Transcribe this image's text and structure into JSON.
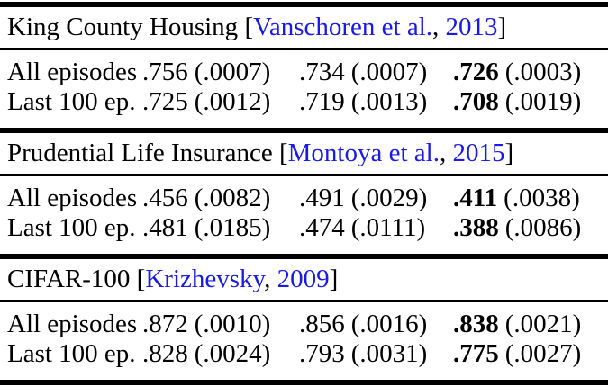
{
  "punct": {
    "open_bracket": " [",
    "comma_sep": ", ",
    "close_bracket": "]"
  },
  "colors": {
    "citation_link": "#1a1ae6",
    "text": "#000000",
    "rule": "#000000",
    "background": "#ffffff"
  },
  "table": {
    "sections": [
      {
        "name": "King County Housing",
        "citation": {
          "authors": "Vanschoren et al.",
          "year": "2013"
        },
        "rows": [
          {
            "label": "All episodes",
            "cells": [
              {
                "value": ".756",
                "std": "(.0007)"
              },
              {
                "value": ".734",
                "std": "(.0007)"
              },
              {
                "value": ".726",
                "std": "(.0003)",
                "bold": true
              }
            ]
          },
          {
            "label": "Last 100 ep.",
            "cells": [
              {
                "value": ".725",
                "std": "(.0012)"
              },
              {
                "value": ".719",
                "std": "(.0013)"
              },
              {
                "value": ".708",
                "std": "(.0019)",
                "bold": true
              }
            ]
          }
        ]
      },
      {
        "name": "Prudential Life Insurance",
        "citation": {
          "authors": "Montoya et al.",
          "year": "2015"
        },
        "rows": [
          {
            "label": "All episodes",
            "cells": [
              {
                "value": ".456",
                "std": "(.0082)"
              },
              {
                "value": ".491",
                "std": "(.0029)"
              },
              {
                "value": ".411",
                "std": "(.0038)",
                "bold": true
              }
            ]
          },
          {
            "label": "Last 100 ep.",
            "cells": [
              {
                "value": ".481",
                "std": "(.0185)"
              },
              {
                "value": ".474",
                "std": "(.0111)"
              },
              {
                "value": ".388",
                "std": "(.0086)",
                "bold": true
              }
            ]
          }
        ]
      },
      {
        "name": "CIFAR-100",
        "citation": {
          "authors": "Krizhevsky",
          "year": "2009"
        },
        "rows": [
          {
            "label": "All episodes",
            "cells": [
              {
                "value": ".872",
                "std": "(.0010)"
              },
              {
                "value": ".856",
                "std": "(.0016)"
              },
              {
                "value": ".838",
                "std": "(.0021)",
                "bold": true
              }
            ]
          },
          {
            "label": "Last 100 ep.",
            "cells": [
              {
                "value": ".828",
                "std": "(.0024)"
              },
              {
                "value": ".793",
                "std": "(.0031)"
              },
              {
                "value": ".775",
                "std": "(.0027)",
                "bold": true
              }
            ]
          }
        ]
      }
    ]
  }
}
